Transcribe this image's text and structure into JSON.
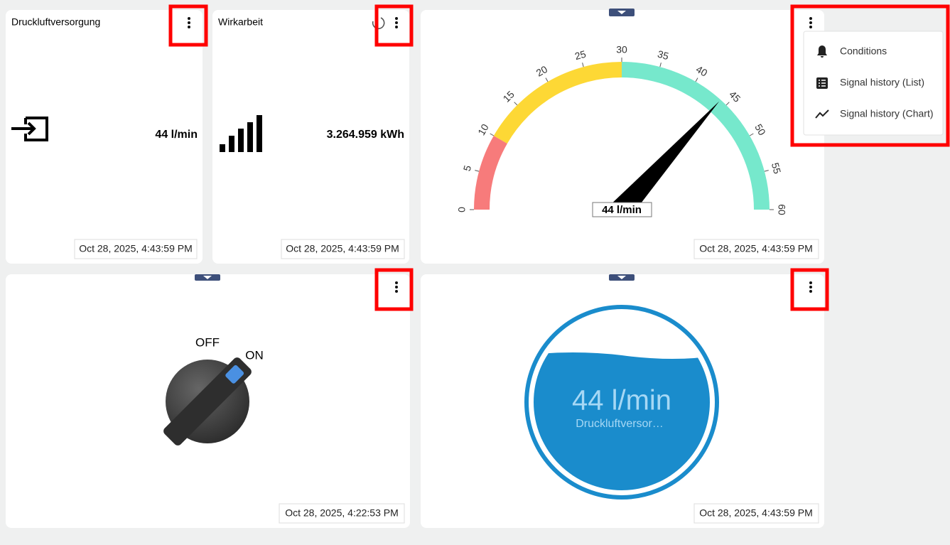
{
  "tiles": [
    {
      "title": "Druckluftversorgung",
      "value": "44 l/min",
      "timestamp": "Oct 28, 2025, 4:43:59 PM"
    },
    {
      "title": "Wirkarbeit",
      "value": "3.264.959 kWh",
      "timestamp": "Oct 28, 2025, 4:43:59 PM"
    }
  ],
  "gauge": {
    "ticks": [
      0,
      5,
      10,
      15,
      20,
      25,
      30,
      35,
      40,
      45,
      50,
      55,
      60
    ],
    "value": 44,
    "value_label": "44 l/min",
    "bands": [
      {
        "from": 0,
        "to": 10,
        "color": "#f77b7b"
      },
      {
        "from": 10,
        "to": 30,
        "color": "#fdd835"
      },
      {
        "from": 30,
        "to": 60,
        "color": "#76e8cc"
      }
    ],
    "timestamp": "Oct 28, 2025, 4:43:59 PM"
  },
  "switch": {
    "off_label": "OFF",
    "on_label": "ON",
    "timestamp": "Oct 28, 2025, 4:22:53 PM"
  },
  "liquid": {
    "value_label": "44 l/min",
    "name": "Druckluftversor…",
    "timestamp": "Oct 28, 2025, 4:43:59 PM"
  },
  "menu": {
    "items": [
      "Conditions",
      "Signal history (List)",
      "Signal history (Chart)"
    ]
  }
}
